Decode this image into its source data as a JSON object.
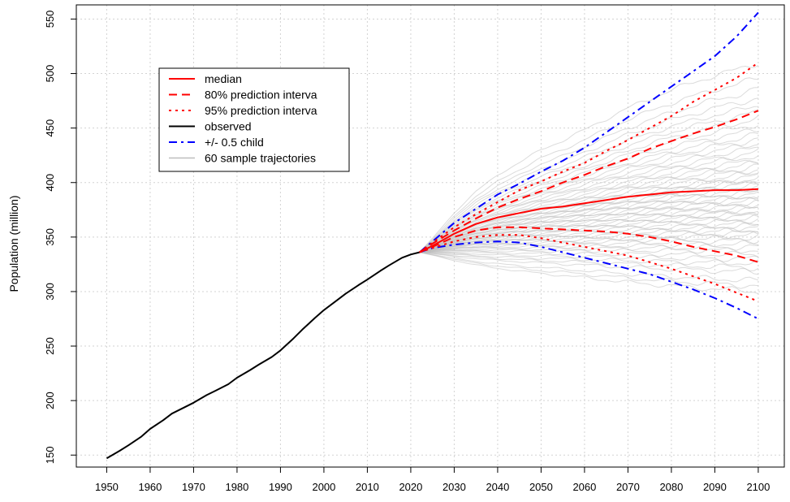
{
  "chart_data": {
    "type": "line",
    "title": "",
    "xlabel": "",
    "ylabel": "Population (million)",
    "xlim": [
      1943,
      2106
    ],
    "ylim": [
      139,
      563
    ],
    "x_ticks": [
      1950,
      1960,
      1970,
      1980,
      1990,
      2000,
      2010,
      2020,
      2030,
      2040,
      2050,
      2060,
      2070,
      2080,
      2090,
      2100
    ],
    "x_tick_labels": [
      "1950",
      "1960",
      "1970",
      "1980",
      "1990",
      "2000",
      "2010",
      "2020",
      "2030",
      "2040",
      "2050",
      "2060",
      "2070",
      "2080",
      "2090",
      "2100"
    ],
    "y_ticks": [
      150,
      200,
      250,
      300,
      350,
      400,
      450,
      500,
      550
    ],
    "y_tick_labels": [
      "150",
      "200",
      "250",
      "300",
      "350",
      "400",
      "450",
      "500",
      "550"
    ],
    "grid": true,
    "legend_position": "top-left",
    "legend": [
      {
        "label": "median",
        "color": "#ff0000",
        "dash": "solid",
        "width": 2
      },
      {
        "label": "80% prediction interva",
        "color": "#ff0000",
        "dash": "dashed",
        "width": 2
      },
      {
        "label": "95% prediction interva",
        "color": "#ff0000",
        "dash": "dotted",
        "width": 2
      },
      {
        "label": "observed",
        "color": "#000000",
        "dash": "solid",
        "width": 2
      },
      {
        "label": "+/- 0.5 child",
        "color": "#0000ff",
        "dash": "dashdot",
        "width": 2
      },
      {
        "label": "60 sample trajectories",
        "color": "#bebebe",
        "dash": "solid",
        "width": 1.5
      }
    ],
    "series": [
      {
        "key": "observed",
        "color": "#000000",
        "dash": "solid",
        "width": 2,
        "x": [
          1950,
          1953,
          1955,
          1958,
          1960,
          1963,
          1965,
          1968,
          1970,
          1973,
          1975,
          1978,
          1980,
          1983,
          1985,
          1988,
          1990,
          1993,
          1995,
          1998,
          2000,
          2003,
          2005,
          2008,
          2010,
          2013,
          2015,
          2018,
          2020,
          2022
        ],
        "y": [
          147,
          154,
          159,
          167,
          174,
          182,
          188,
          194,
          198,
          205,
          209,
          215,
          221,
          228,
          233,
          240,
          246,
          257,
          265,
          276,
          283,
          292,
          298,
          306,
          311,
          319,
          324,
          331,
          334,
          336
        ]
      },
      {
        "key": "median",
        "color": "#ff0000",
        "dash": "solid",
        "width": 2,
        "x": [
          2022,
          2025,
          2030,
          2035,
          2040,
          2045,
          2050,
          2055,
          2060,
          2065,
          2070,
          2075,
          2080,
          2085,
          2090,
          2095,
          2100
        ],
        "y": [
          336,
          342,
          353,
          362,
          368,
          372,
          376,
          378,
          381,
          384,
          387,
          389,
          391,
          392,
          393,
          393,
          394
        ]
      },
      {
        "key": "pi80_upper",
        "color": "#ff0000",
        "dash": "dashed",
        "width": 2,
        "x": [
          2022,
          2025,
          2030,
          2035,
          2040,
          2045,
          2050,
          2055,
          2060,
          2065,
          2070,
          2075,
          2080,
          2085,
          2090,
          2095,
          2100
        ],
        "y": [
          336,
          344,
          356,
          367,
          377,
          385,
          392,
          400,
          407,
          415,
          422,
          431,
          438,
          445,
          451,
          458,
          466
        ]
      },
      {
        "key": "pi80_lower",
        "color": "#ff0000",
        "dash": "dashed",
        "width": 2,
        "x": [
          2022,
          2025,
          2030,
          2035,
          2040,
          2045,
          2050,
          2055,
          2060,
          2065,
          2070,
          2075,
          2080,
          2085,
          2090,
          2095,
          2100
        ],
        "y": [
          336,
          341,
          350,
          356,
          359,
          359,
          358,
          357,
          356,
          355,
          353,
          350,
          346,
          341,
          337,
          333,
          327
        ]
      },
      {
        "key": "pi95_upper",
        "color": "#ff0000",
        "dash": "dotted",
        "width": 2,
        "x": [
          2022,
          2025,
          2030,
          2035,
          2040,
          2045,
          2050,
          2055,
          2060,
          2065,
          2070,
          2075,
          2080,
          2085,
          2090,
          2095,
          2100
        ],
        "y": [
          336,
          345,
          359,
          371,
          382,
          393,
          401,
          410,
          418,
          429,
          439,
          450,
          461,
          474,
          485,
          496,
          510
        ]
      },
      {
        "key": "pi95_lower",
        "color": "#ff0000",
        "dash": "dotted",
        "width": 2,
        "x": [
          2022,
          2025,
          2030,
          2035,
          2040,
          2045,
          2050,
          2055,
          2060,
          2065,
          2070,
          2075,
          2080,
          2085,
          2090,
          2095,
          2100
        ],
        "y": [
          336,
          340,
          346,
          350,
          352,
          352,
          349,
          345,
          341,
          337,
          333,
          327,
          321,
          314,
          307,
          299,
          291
        ]
      },
      {
        "key": "half_child_upper",
        "color": "#0000ff",
        "dash": "dashdot",
        "width": 2,
        "x": [
          2022,
          2025,
          2030,
          2035,
          2040,
          2045,
          2050,
          2055,
          2060,
          2065,
          2070,
          2075,
          2080,
          2085,
          2090,
          2095,
          2100
        ],
        "y": [
          336,
          346,
          363,
          376,
          389,
          399,
          410,
          420,
          432,
          446,
          460,
          474,
          488,
          502,
          516,
          534,
          556
        ]
      },
      {
        "key": "half_child_lower",
        "color": "#0000ff",
        "dash": "dashdot",
        "width": 2,
        "x": [
          2022,
          2025,
          2030,
          2035,
          2040,
          2045,
          2050,
          2055,
          2060,
          2065,
          2070,
          2075,
          2080,
          2085,
          2090,
          2095,
          2100
        ],
        "y": [
          336,
          340,
          343,
          345,
          346,
          345,
          341,
          336,
          331,
          326,
          321,
          316,
          309,
          302,
          294,
          285,
          275
        ]
      }
    ],
    "sample_trajectories": {
      "count": 60,
      "color": "#bebebe",
      "start_year": 2022,
      "start_value": 336,
      "end_year": 2100,
      "end_values": [
        300,
        305,
        310,
        318,
        322,
        326,
        330,
        334,
        338,
        341,
        344,
        347,
        350,
        352,
        354,
        357,
        359,
        361,
        363,
        366,
        368,
        370,
        372,
        374,
        376,
        378,
        380,
        382,
        384,
        386,
        388,
        390,
        392,
        394,
        396,
        398,
        400,
        402,
        404,
        406,
        409,
        412,
        415,
        418,
        421,
        425,
        428,
        432,
        436,
        440,
        444,
        449,
        454,
        459,
        465,
        471,
        478,
        486,
        496,
        510
      ]
    }
  }
}
